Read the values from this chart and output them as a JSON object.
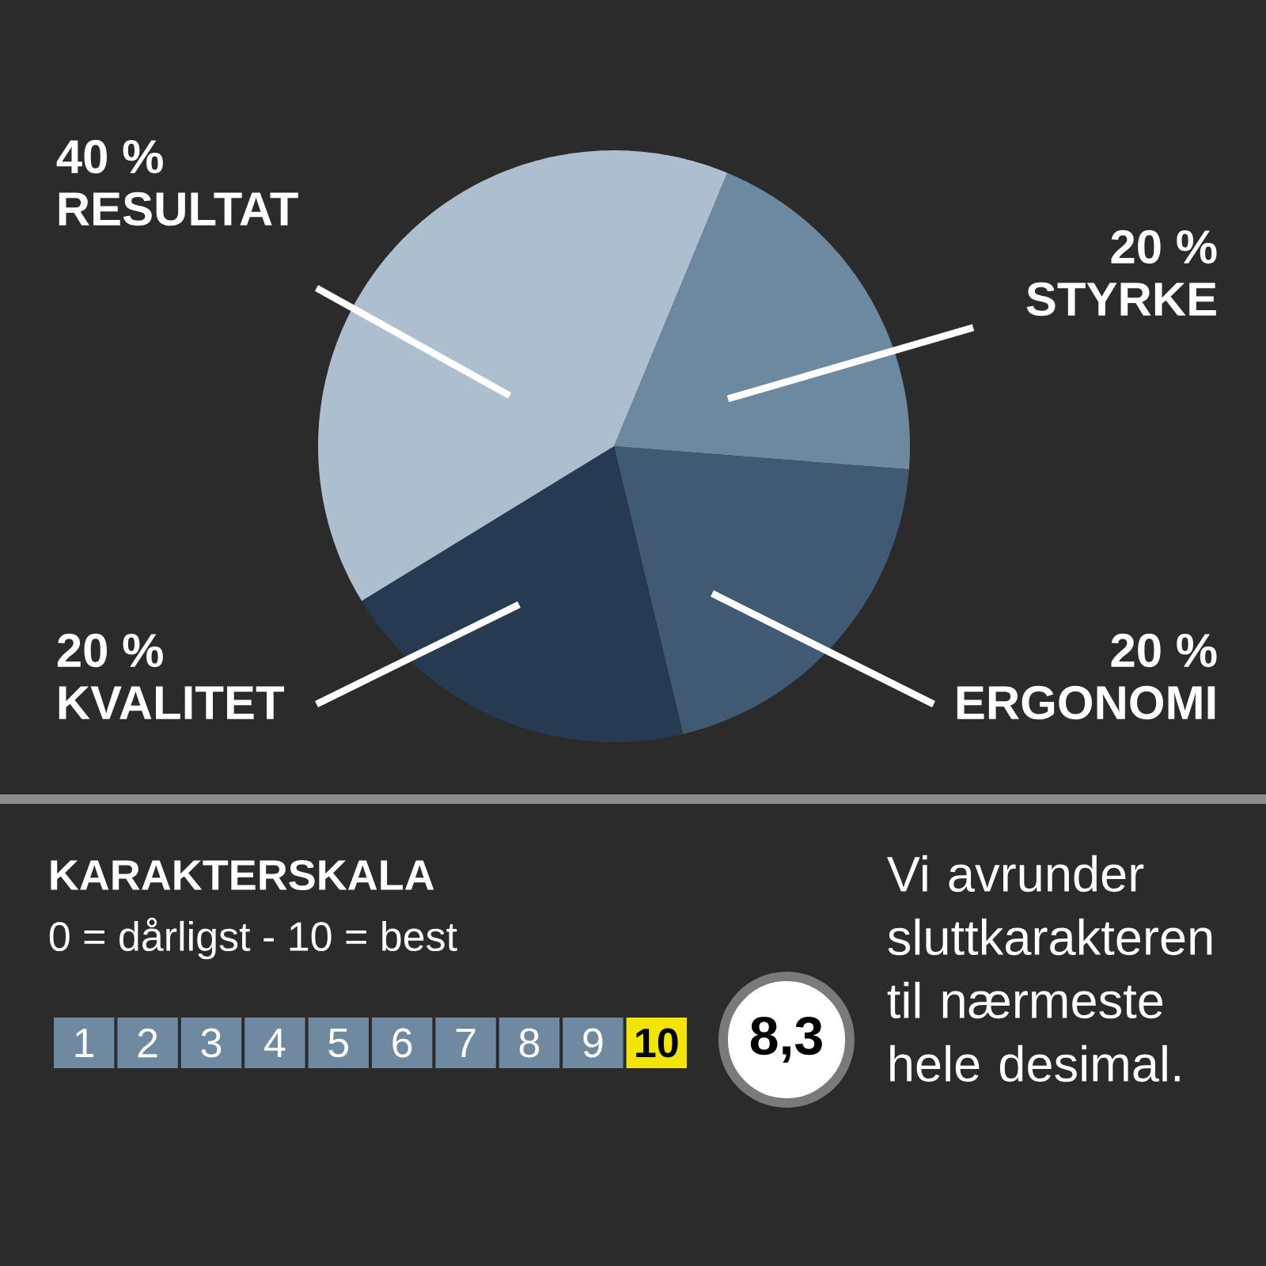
{
  "chart_data": {
    "type": "pie",
    "categories": [
      "STYRKE",
      "ERGONOMI",
      "KVALITET",
      "RESULTAT"
    ],
    "values": [
      20,
      20,
      20,
      40
    ],
    "colors": [
      "#6d899f",
      "#3f5a72",
      "#263a52",
      "#adbfce"
    ],
    "value_labels": [
      "20 %",
      "20 %",
      "20 %",
      "40 %"
    ],
    "annotations": [
      "KARAKTERSKALA",
      "0 = dårligst - 10 = best",
      "1",
      "2",
      "3",
      "4",
      "5",
      "6",
      "7",
      "8",
      "9",
      "10",
      "8,3",
      "Vi avrunder sluttkarakteren til nærmeste hele desimal."
    ]
  }
}
